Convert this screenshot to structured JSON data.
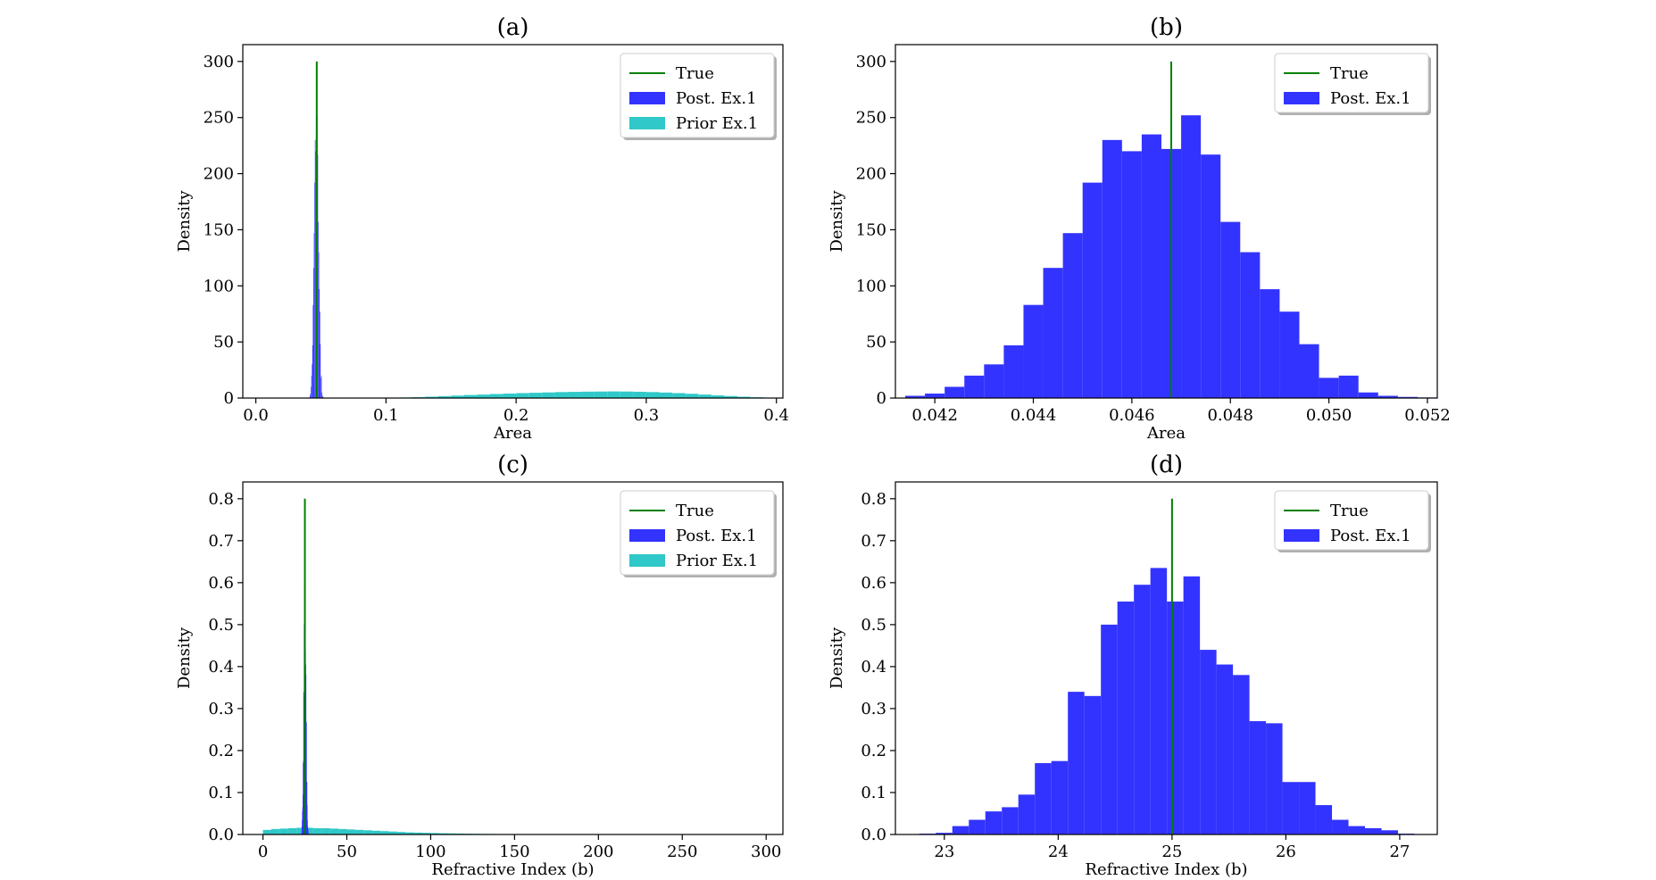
{
  "chart_data": [
    {
      "id": "a",
      "type": "histogram",
      "title": "(a)",
      "xlabel": "Area",
      "ylabel": "Density",
      "xlim": [
        -0.01,
        0.405
      ],
      "ylim": [
        0,
        315
      ],
      "xticks": [
        0.0,
        0.1,
        0.2,
        0.3,
        0.4
      ],
      "xtick_labels": [
        "0.0",
        "0.1",
        "0.2",
        "0.3",
        "0.4"
      ],
      "yticks": [
        0,
        50,
        100,
        150,
        200,
        250,
        300
      ],
      "ytick_labels": [
        "0",
        "50",
        "100",
        "150",
        "200",
        "250",
        "300"
      ],
      "legend_position": "top-right",
      "true_line": {
        "name": "True",
        "x": 0.0468,
        "y_max": 300,
        "color": "#008000"
      },
      "series": [
        {
          "name": "Prior Ex.1",
          "color": "#30c8c8",
          "bin_width": 0.01,
          "bin_starts": [
            0.1,
            0.11,
            0.12,
            0.13,
            0.14,
            0.15,
            0.16,
            0.17,
            0.18,
            0.19,
            0.2,
            0.21,
            0.22,
            0.23,
            0.24,
            0.25,
            0.26,
            0.27,
            0.28,
            0.29,
            0.3,
            0.31,
            0.32,
            0.33,
            0.34,
            0.35,
            0.36,
            0.37,
            0.38,
            0.39,
            0.4
          ],
          "values": [
            0.3,
            0.5,
            0.8,
            1.2,
            1.7,
            2.2,
            2.7,
            3.1,
            3.6,
            4.0,
            4.4,
            4.7,
            5.0,
            5.3,
            5.5,
            5.7,
            5.8,
            5.9,
            5.8,
            5.6,
            5.3,
            4.9,
            4.4,
            3.8,
            3.1,
            2.4,
            1.8,
            1.2,
            0.7,
            0.4,
            0.2
          ]
        },
        {
          "name": "Post. Ex.1",
          "color": "#3333ff",
          "bin_width": 0.0004,
          "bin_starts": [
            0.0414,
            0.0418,
            0.0422,
            0.0426,
            0.043,
            0.0434,
            0.0438,
            0.0442,
            0.0446,
            0.045,
            0.0454,
            0.0458,
            0.0462,
            0.0466,
            0.047,
            0.0474,
            0.0478,
            0.0482,
            0.0486,
            0.049,
            0.0494,
            0.0498,
            0.0502,
            0.0506,
            0.051,
            0.0514,
            0.0518
          ],
          "values": [
            2,
            4,
            10,
            20,
            30,
            47,
            83,
            116,
            147,
            192,
            230,
            220,
            235,
            222,
            252,
            217,
            157,
            130,
            97,
            77,
            48,
            18,
            20,
            5,
            2,
            1,
            0.5
          ]
        }
      ]
    },
    {
      "id": "b",
      "type": "histogram",
      "title": "(b)",
      "xlabel": "Area",
      "ylabel": "Density",
      "xlim": [
        0.0412,
        0.0522
      ],
      "ylim": [
        0,
        315
      ],
      "xticks": [
        0.042,
        0.044,
        0.046,
        0.048,
        0.05,
        0.052
      ],
      "xtick_labels": [
        "0.042",
        "0.044",
        "0.046",
        "0.048",
        "0.050",
        "0.052"
      ],
      "yticks": [
        0,
        50,
        100,
        150,
        200,
        250,
        300
      ],
      "ytick_labels": [
        "0",
        "50",
        "100",
        "150",
        "200",
        "250",
        "300"
      ],
      "legend_position": "top-right",
      "true_line": {
        "name": "True",
        "x": 0.0468,
        "y_max": 300,
        "color": "#008000"
      },
      "series": [
        {
          "name": "Post. Ex.1",
          "color": "#3333ff",
          "bin_width": 0.0004,
          "bin_starts": [
            0.0414,
            0.0418,
            0.0422,
            0.0426,
            0.043,
            0.0434,
            0.0438,
            0.0442,
            0.0446,
            0.045,
            0.0454,
            0.0458,
            0.0462,
            0.0466,
            0.047,
            0.0474,
            0.0478,
            0.0482,
            0.0486,
            0.049,
            0.0494,
            0.0498,
            0.0502,
            0.0506,
            0.051,
            0.0514,
            0.0518
          ],
          "values": [
            2,
            4,
            10,
            20,
            30,
            47,
            83,
            116,
            147,
            192,
            230,
            220,
            235,
            222,
            252,
            217,
            157,
            130,
            97,
            77,
            48,
            18,
            20,
            5,
            2,
            1,
            0.5
          ]
        }
      ]
    },
    {
      "id": "c",
      "type": "histogram",
      "title": "(c)",
      "xlabel": "Refractive Index (b)",
      "ylabel": "Density",
      "xlim": [
        -12,
        310
      ],
      "ylim": [
        0,
        0.84
      ],
      "xticks": [
        0,
        50,
        100,
        150,
        200,
        250,
        300
      ],
      "xtick_labels": [
        "0",
        "50",
        "100",
        "150",
        "200",
        "250",
        "300"
      ],
      "yticks": [
        0.0,
        0.1,
        0.2,
        0.3,
        0.4,
        0.5,
        0.6,
        0.7,
        0.8
      ],
      "ytick_labels": [
        "0.0",
        "0.1",
        "0.2",
        "0.3",
        "0.4",
        "0.5",
        "0.6",
        "0.7",
        "0.8"
      ],
      "legend_position": "top-right",
      "true_line": {
        "name": "True",
        "x": 25,
        "y_max": 0.8,
        "color": "#008000"
      },
      "series": [
        {
          "name": "Prior Ex.1",
          "color": "#30c8c8",
          "bin_width": 5,
          "bin_starts": [
            0,
            5,
            10,
            15,
            20,
            25,
            30,
            35,
            40,
            45,
            50,
            55,
            60,
            65,
            70,
            75,
            80,
            85,
            90,
            95,
            100,
            105,
            110,
            115,
            120,
            125,
            130,
            135,
            140,
            145,
            150,
            155,
            160,
            165,
            170,
            175,
            180,
            185,
            190,
            195,
            200,
            205,
            210,
            215,
            220,
            225,
            230,
            235,
            240,
            245,
            250,
            255,
            260,
            265,
            270,
            275,
            280,
            285,
            290,
            295
          ],
          "values": [
            0.011,
            0.013,
            0.014,
            0.015,
            0.016,
            0.016,
            0.015,
            0.015,
            0.014,
            0.013,
            0.012,
            0.011,
            0.01,
            0.009,
            0.008,
            0.007,
            0.006,
            0.005,
            0.0045,
            0.004,
            0.0035,
            0.003,
            0.0026,
            0.0022,
            0.0019,
            0.0016,
            0.0014,
            0.0012,
            0.001,
            0.0009,
            0.0008,
            0.0007,
            0.0006,
            0.0005,
            0.0004,
            0.0004,
            0.0003,
            0.0003,
            0.0002,
            0.0002,
            0.0002,
            0.0001,
            0.0001,
            0.0001,
            0.0001,
            0.0001,
            0.0001,
            0.0001,
            0.0001,
            0.0001,
            0.0001,
            0.0001,
            0.0001,
            0.0001,
            0.0001,
            0.0001,
            0.0001,
            0.0001,
            0.0001,
            0.0001
          ]
        },
        {
          "name": "Post. Ex.1",
          "color": "#3333ff",
          "bin_width": 0.145,
          "bin_starts": [
            22.78,
            22.925,
            23.07,
            23.215,
            23.36,
            23.505,
            23.65,
            23.795,
            23.94,
            24.085,
            24.23,
            24.375,
            24.52,
            24.665,
            24.81,
            24.955,
            25.1,
            25.245,
            25.39,
            25.535,
            25.68,
            25.825,
            25.97,
            26.115,
            26.26,
            26.405,
            26.55,
            26.695,
            26.84,
            26.985
          ],
          "values": [
            0.002,
            0.004,
            0.02,
            0.035,
            0.055,
            0.065,
            0.095,
            0.17,
            0.175,
            0.34,
            0.33,
            0.5,
            0.555,
            0.595,
            0.635,
            0.555,
            0.615,
            0.44,
            0.405,
            0.38,
            0.27,
            0.265,
            0.125,
            0.125,
            0.07,
            0.035,
            0.02,
            0.015,
            0.01,
            0.002
          ]
        }
      ]
    },
    {
      "id": "d",
      "type": "histogram",
      "title": "(d)",
      "xlabel": "Refractive Index (b)",
      "ylabel": "Density",
      "xlim": [
        22.57,
        27.33
      ],
      "ylim": [
        0,
        0.84
      ],
      "xticks": [
        23,
        24,
        25,
        26,
        27
      ],
      "xtick_labels": [
        "23",
        "24",
        "25",
        "26",
        "27"
      ],
      "yticks": [
        0.0,
        0.1,
        0.2,
        0.3,
        0.4,
        0.5,
        0.6,
        0.7,
        0.8
      ],
      "ytick_labels": [
        "0.0",
        "0.1",
        "0.2",
        "0.3",
        "0.4",
        "0.5",
        "0.6",
        "0.7",
        "0.8"
      ],
      "legend_position": "top-right",
      "true_line": {
        "name": "True",
        "x": 25,
        "y_max": 0.8,
        "color": "#008000"
      },
      "series": [
        {
          "name": "Post. Ex.1",
          "color": "#3333ff",
          "bin_width": 0.145,
          "bin_starts": [
            22.78,
            22.925,
            23.07,
            23.215,
            23.36,
            23.505,
            23.65,
            23.795,
            23.94,
            24.085,
            24.23,
            24.375,
            24.52,
            24.665,
            24.81,
            24.955,
            25.1,
            25.245,
            25.39,
            25.535,
            25.68,
            25.825,
            25.97,
            26.115,
            26.26,
            26.405,
            26.55,
            26.695,
            26.84,
            26.985
          ],
          "values": [
            0.002,
            0.004,
            0.02,
            0.035,
            0.055,
            0.065,
            0.095,
            0.17,
            0.175,
            0.34,
            0.33,
            0.5,
            0.555,
            0.595,
            0.635,
            0.555,
            0.615,
            0.44,
            0.405,
            0.38,
            0.27,
            0.265,
            0.125,
            0.125,
            0.07,
            0.035,
            0.02,
            0.015,
            0.01,
            0.002
          ]
        }
      ]
    }
  ]
}
